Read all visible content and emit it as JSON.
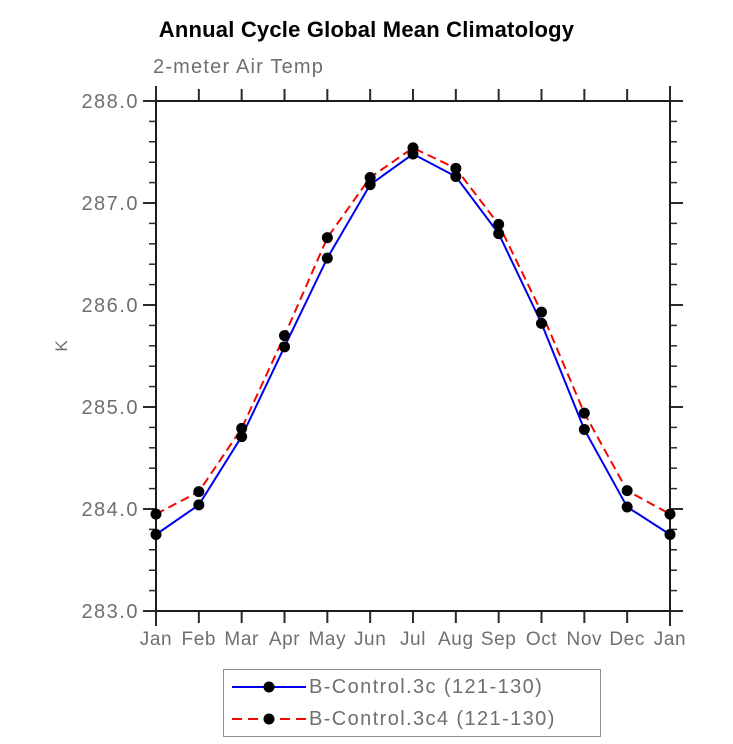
{
  "chart_data": {
    "type": "line",
    "title": "Annual Cycle Global Mean Climatology",
    "subtitle": "2-meter Air Temp",
    "ylabel": "K",
    "categories": [
      "Jan",
      "Feb",
      "Mar",
      "Apr",
      "May",
      "Jun",
      "Jul",
      "Aug",
      "Sep",
      "Oct",
      "Nov",
      "Dec",
      "Jan"
    ],
    "series": [
      {
        "name": "B-Control.3c (121-130)",
        "color": "#0000ee",
        "line_style": "solid",
        "marker": "filled-circle",
        "values": [
          283.75,
          284.04,
          284.71,
          285.59,
          286.46,
          287.18,
          287.48,
          287.26,
          286.7,
          285.82,
          284.78,
          284.02,
          283.75
        ]
      },
      {
        "name": "B-Control.3c4 (121-130)",
        "color": "#f10800",
        "line_style": "dashed",
        "marker": "filled-circle",
        "values": [
          283.95,
          284.17,
          284.79,
          285.7,
          286.66,
          287.25,
          287.54,
          287.34,
          286.79,
          285.93,
          284.94,
          284.18,
          283.95
        ]
      }
    ],
    "ylim": [
      283.0,
      288.0
    ],
    "ytick_major": 1.0,
    "ytick_minor": 0.2,
    "ytick_label_format": "one-decimal",
    "grid": false,
    "legend_position": "bottom-center"
  },
  "colors": {
    "axis": "#1c1c1c",
    "tick": "#2a2a2a",
    "label_gray": "#6f6f6f",
    "legend_border": "#8f8f8f",
    "marker": "#000000"
  }
}
